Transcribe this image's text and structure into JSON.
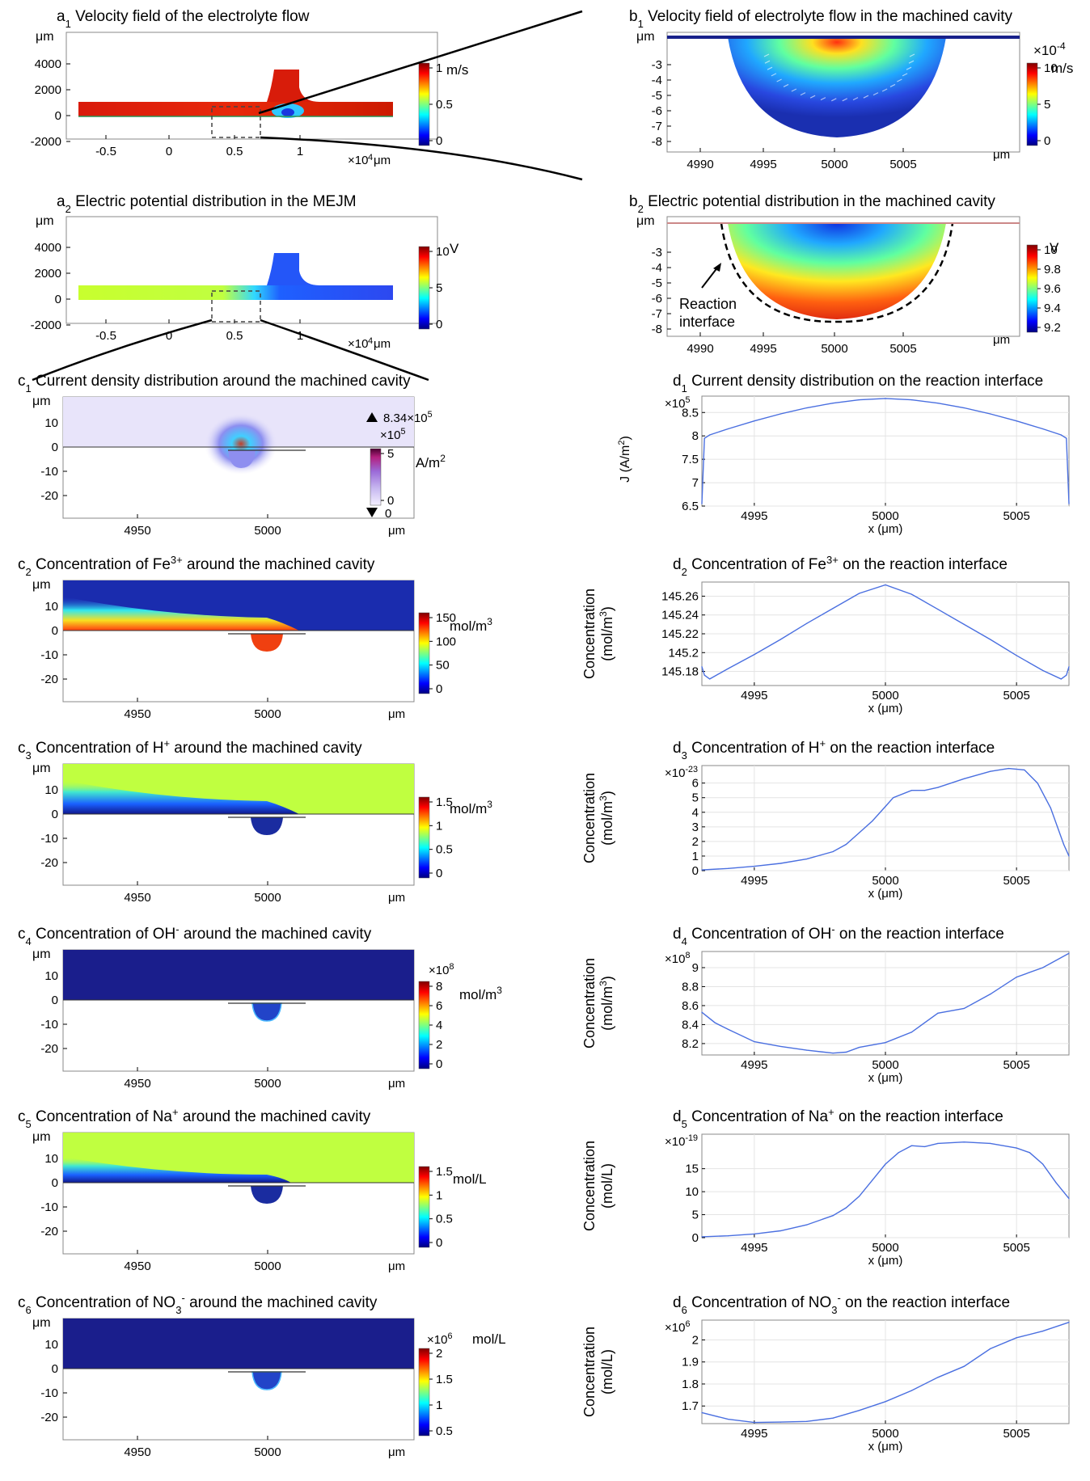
{
  "figure": {
    "a1": {
      "title_prefix": "a",
      "title_sub": "1",
      "title": " Velocity field of the electrolyte flow",
      "y_unit": "μm",
      "x_unit": "μm",
      "x_exponent_base": "×10",
      "x_exponent": "4",
      "yticks": [
        "4000",
        "2000",
        "0",
        "-2000"
      ],
      "xticks": [
        "-0.5",
        "0",
        "0.5",
        "1"
      ],
      "colorbar": {
        "unit": "m/s",
        "ticks": [
          "1",
          "0.5",
          "0"
        ]
      }
    },
    "a2": {
      "title_prefix": "a",
      "title_sub": "2",
      "title": " Electric potential distribution in the MEJM",
      "y_unit": "μm",
      "x_unit": "μm",
      "x_exponent_base": "×10",
      "x_exponent": "4",
      "yticks": [
        "4000",
        "2000",
        "0",
        "-2000"
      ],
      "xticks": [
        "-0.5",
        "0",
        "0.5",
        "1"
      ],
      "colorbar": {
        "unit": "V",
        "ticks": [
          "10",
          "5",
          "0"
        ]
      }
    },
    "b1": {
      "title_prefix": "b",
      "title_sub": "1",
      "title": " Velocity field of electrolyte flow in the machined cavity",
      "y_unit": "μm",
      "x_unit": "μm",
      "yticks": [
        "-3",
        "-4",
        "-5",
        "-6",
        "-7",
        "-8"
      ],
      "xticks": [
        "4990",
        "4995",
        "5000",
        "5005"
      ],
      "colorbar": {
        "exponent_base": "×10",
        "exponent": "-4",
        "unit": "m/s",
        "ticks": [
          "10",
          "5",
          "0"
        ]
      }
    },
    "b2": {
      "title_prefix": "b",
      "title_sub": "2",
      "title": " Electric potential distribution in the machined cavity",
      "y_unit": "μm",
      "x_unit": "μm",
      "yticks": [
        "-3",
        "-4",
        "-5",
        "-6",
        "-7",
        "-8"
      ],
      "xticks": [
        "4990",
        "4995",
        "5000",
        "5005"
      ],
      "annotation_line1": "Reaction",
      "annotation_line2": "interface",
      "colorbar": {
        "unit": "V",
        "ticks": [
          "10",
          "9.8",
          "9.6",
          "9.4",
          "9.2"
        ]
      }
    },
    "c1": {
      "title_prefix": "c",
      "title_sub": "1",
      "title": " Current density distribution around the machined cavity",
      "y_unit": "μm",
      "x_unit": "μm",
      "yticks": [
        "10",
        "0",
        "-10",
        "-20"
      ],
      "xticks": [
        "4950",
        "5000"
      ],
      "colorbar": {
        "max_label": "8.34×10",
        "max_exp": "5",
        "min_label": "0",
        "exponent_base": "×10",
        "exponent": "5",
        "unit": "A/m",
        "unit_exp": "2",
        "ticks": [
          "5",
          "0"
        ]
      }
    },
    "c2": {
      "title_prefix": "c",
      "title_sub": "2",
      "title_a": " Concentration of Fe",
      "title_sup": "3+",
      "title_b": " around the machined cavity",
      "y_unit": "μm",
      "x_unit": "μm",
      "yticks": [
        "10",
        "0",
        "-10",
        "-20"
      ],
      "xticks": [
        "4950",
        "5000"
      ],
      "colorbar": {
        "unit": "mol/m",
        "unit_exp": "3",
        "ticks": [
          "150",
          "100",
          "50",
          "0"
        ]
      }
    },
    "c3": {
      "title_prefix": "c",
      "title_sub": "3",
      "title_a": " Concentration of H",
      "title_sup": "+",
      "title_b": " around the machined cavity",
      "y_unit": "μm",
      "x_unit": "μm",
      "yticks": [
        "10",
        "0",
        "-10",
        "-20"
      ],
      "xticks": [
        "4950",
        "5000"
      ],
      "colorbar": {
        "unit": "mol/m",
        "unit_exp": "3",
        "ticks": [
          "1.5",
          "1",
          "0.5",
          "0"
        ]
      }
    },
    "c4": {
      "title_prefix": "c",
      "title_sub": "4",
      "title_a": " Concentration of OH",
      "title_sup": "-",
      "title_b": " around the machined cavity",
      "y_unit": "μm",
      "x_unit": "μm",
      "yticks": [
        "10",
        "0",
        "-10",
        "-20"
      ],
      "xticks": [
        "4950",
        "5000"
      ],
      "colorbar": {
        "exponent_base": "×10",
        "exponent": "8",
        "unit": "mol/m",
        "unit_exp": "3",
        "ticks": [
          "8",
          "6",
          "4",
          "2",
          "0"
        ]
      }
    },
    "c5": {
      "title_prefix": "c",
      "title_sub": "5",
      "title_a": " Concentration of Na",
      "title_sup": "+",
      "title_b": " around the machined cavity",
      "y_unit": "μm",
      "x_unit": "μm",
      "yticks": [
        "10",
        "0",
        "-10",
        "-20"
      ],
      "xticks": [
        "4950",
        "5000"
      ],
      "colorbar": {
        "unit": "mol/L",
        "ticks": [
          "1.5",
          "1",
          "0.5",
          "0"
        ]
      }
    },
    "c6": {
      "title_prefix": "c",
      "title_sub": "6",
      "title_a": " Concentration of NO",
      "title_sub2": "3",
      "title_sup": "-",
      "title_b": " around the machined cavity",
      "y_unit": "μm",
      "x_unit": "μm",
      "yticks": [
        "10",
        "0",
        "-10",
        "-20"
      ],
      "xticks": [
        "4950",
        "5000"
      ],
      "colorbar": {
        "exponent_base": "×10",
        "exponent": "6",
        "unit": "mol/L",
        "ticks": [
          "2",
          "1.5",
          "1",
          "0.5"
        ]
      }
    }
  },
  "chart_data": [
    {
      "id": "d1",
      "type": "line",
      "title_prefix": "d",
      "title_sub": "1",
      "title": " Current density distribution on the reaction interface",
      "xlabel": "x (μm)",
      "ylabel": "J  (A/m",
      "ylabel_exp": "2",
      "ylabel_end": ")",
      "exponent_base": "×10",
      "exponent": "5",
      "xlim": [
        4993,
        5007
      ],
      "ylim": [
        6.5,
        8.85
      ],
      "xticks": [
        4995,
        5000,
        5005
      ],
      "yticks": [
        6.5,
        7,
        7.5,
        8,
        8.5
      ],
      "ytick_labels": [
        "6.5",
        "7",
        "7.5",
        "8",
        "8.5"
      ],
      "x": [
        4993.0,
        4993.1,
        4993.3,
        4994,
        4995,
        4996,
        4997,
        4998,
        4999,
        5000,
        5001,
        5002,
        5003,
        5004,
        5005,
        5006,
        5006.7,
        5006.9,
        5007.0
      ],
      "y": [
        6.55,
        7.95,
        8.02,
        8.15,
        8.32,
        8.47,
        8.6,
        8.7,
        8.77,
        8.8,
        8.77,
        8.7,
        8.6,
        8.47,
        8.32,
        8.15,
        8.02,
        7.95,
        6.55
      ]
    },
    {
      "id": "d2",
      "type": "line",
      "title_prefix": "d",
      "title_sub": "2",
      "title_a": " Concentration of Fe",
      "title_sup": "3+",
      "title_b": " on the reaction interface",
      "xlabel": "x (μm)",
      "ylabel": "Concentration",
      "ylabel2": "(mol/m",
      "ylabel2_exp": "3",
      "ylabel2_end": ")",
      "xlim": [
        4993,
        5007
      ],
      "ylim": [
        145.165,
        145.275
      ],
      "xticks": [
        4995,
        5000,
        5005
      ],
      "yticks": [
        145.18,
        145.2,
        145.22,
        145.24,
        145.26
      ],
      "ytick_labels": [
        "145.18",
        "145.2",
        "145.22",
        "145.24",
        "145.26"
      ],
      "x": [
        4993.0,
        4993.1,
        4993.3,
        4994,
        4995,
        4996,
        4997,
        4998,
        4999,
        5000,
        5001,
        5002,
        5003,
        5004,
        5005,
        5006,
        5006.7,
        5006.9,
        5007.0
      ],
      "y": [
        145.185,
        145.176,
        145.172,
        145.183,
        145.198,
        145.214,
        145.231,
        145.247,
        145.263,
        145.272,
        145.262,
        145.246,
        145.23,
        145.214,
        145.197,
        145.181,
        145.172,
        145.176,
        145.185
      ]
    },
    {
      "id": "d3",
      "type": "line",
      "title_prefix": "d",
      "title_sub": "3",
      "title_a": " Concentration of H",
      "title_sup": "+",
      "title_b": " on the reaction interface",
      "xlabel": "x (μm)",
      "ylabel": "Concentration",
      "ylabel2": "(mol/m",
      "ylabel2_exp": "3",
      "ylabel2_end": ")",
      "exponent_base": "×10",
      "exponent": "-23",
      "xlim": [
        4993,
        5007
      ],
      "ylim": [
        0,
        7.2
      ],
      "xticks": [
        4995,
        5000,
        5005
      ],
      "yticks": [
        0,
        1,
        2,
        3,
        4,
        5,
        6
      ],
      "ytick_labels": [
        "0",
        "1",
        "2",
        "3",
        "4",
        "5",
        "6"
      ],
      "x": [
        4993,
        4994,
        4995,
        4996,
        4997,
        4998,
        4998.5,
        4999,
        4999.5,
        5000,
        5000.3,
        5001,
        5001.5,
        5002,
        5003,
        5004,
        5004.7,
        5005.3,
        5005.8,
        5006.3,
        5006.8,
        5007
      ],
      "y": [
        0.05,
        0.15,
        0.3,
        0.5,
        0.8,
        1.3,
        1.8,
        2.6,
        3.4,
        4.4,
        5.0,
        5.5,
        5.5,
        5.7,
        6.3,
        6.8,
        7.0,
        6.9,
        6.0,
        4.3,
        1.8,
        1.0
      ]
    },
    {
      "id": "d4",
      "type": "line",
      "title_prefix": "d",
      "title_sub": "4",
      "title_a": " Concentration of OH",
      "title_sup": "-",
      "title_b": " on the reaction interface",
      "xlabel": "x (μm)",
      "ylabel": "Concentration",
      "ylabel2": "(mol/m",
      "ylabel2_exp": "3",
      "ylabel2_end": ")",
      "exponent_base": "×10",
      "exponent": "8",
      "xlim": [
        4993,
        5007
      ],
      "ylim": [
        8.08,
        9.17
      ],
      "xticks": [
        4995,
        5000,
        5005
      ],
      "yticks": [
        8.2,
        8.4,
        8.6,
        8.8,
        9
      ],
      "ytick_labels": [
        "8.2",
        "8.4",
        "8.6",
        "8.8",
        "9"
      ],
      "x": [
        4993,
        4993.5,
        4994,
        4995,
        4996,
        4997,
        4998,
        4998.5,
        4999,
        5000,
        5001,
        5002,
        5003,
        5004,
        5005,
        5006,
        5007
      ],
      "y": [
        8.53,
        8.42,
        8.35,
        8.22,
        8.17,
        8.13,
        8.1,
        8.11,
        8.16,
        8.21,
        8.32,
        8.52,
        8.57,
        8.72,
        8.9,
        9.0,
        9.15
      ]
    },
    {
      "id": "d5",
      "type": "line",
      "title_prefix": "d",
      "title_sub": "5",
      "title_a": " Concentration of Na",
      "title_sup": "+",
      "title_b": " on the reaction interface",
      "xlabel": "x (μm)",
      "ylabel": "Concentration",
      "ylabel2": "(mol/L)",
      "exponent_base": "×10",
      "exponent": "-19",
      "xlim": [
        4993,
        5007
      ],
      "ylim": [
        0,
        22.5
      ],
      "xticks": [
        4995,
        5000,
        5005
      ],
      "yticks": [
        0,
        5,
        10,
        15
      ],
      "ytick_labels": [
        "0",
        "5",
        "10",
        "15"
      ],
      "x": [
        4993,
        4994,
        4995,
        4996,
        4997,
        4998,
        4998.5,
        4999,
        4999.5,
        5000,
        5000.5,
        5001,
        5001.5,
        5002,
        5003,
        5004,
        5005,
        5005.5,
        5006,
        5006.5,
        5007
      ],
      "y": [
        0.2,
        0.4,
        0.8,
        1.5,
        2.8,
        4.8,
        6.5,
        9.0,
        12.5,
        16.0,
        18.5,
        20.0,
        19.8,
        20.5,
        20.8,
        20.5,
        19.5,
        18.5,
        16.0,
        12.0,
        8.5
      ]
    },
    {
      "id": "d6",
      "type": "line",
      "title_prefix": "d",
      "title_sub": "6",
      "title_a": " Concentration of NO",
      "title_sub2": "3",
      "title_sup": "-",
      "title_b": " on the reaction interface",
      "xlabel": "x (μm)",
      "ylabel": "Concentration",
      "ylabel2": "(mol/L)",
      "exponent_base": "×10",
      "exponent": "6",
      "xlim": [
        4993,
        5007
      ],
      "ylim": [
        1.62,
        2.09
      ],
      "xticks": [
        4995,
        5000,
        5005
      ],
      "yticks": [
        1.7,
        1.8,
        1.9,
        2
      ],
      "ytick_labels": [
        "1.7",
        "1.8",
        "1.9",
        "2"
      ],
      "x": [
        4993,
        4994,
        4995,
        4996,
        4997,
        4998,
        4999,
        5000,
        5001,
        5002,
        5003,
        5004,
        5005,
        5006,
        5007
      ],
      "y": [
        1.67,
        1.64,
        1.625,
        1.627,
        1.63,
        1.645,
        1.68,
        1.72,
        1.77,
        1.83,
        1.88,
        1.96,
        2.01,
        2.04,
        2.08
      ]
    }
  ]
}
